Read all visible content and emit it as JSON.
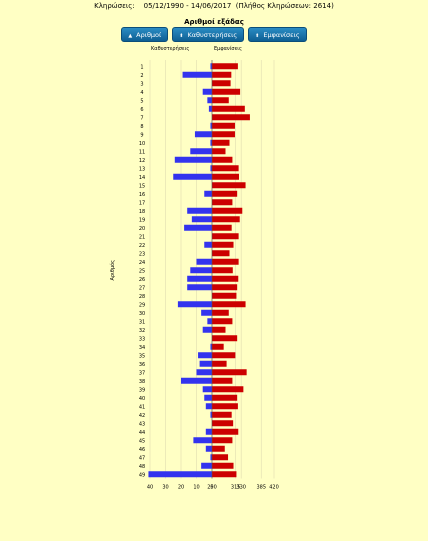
{
  "header": {
    "label": "Κληρώσεις:",
    "range": "05/12/1990 - 14/06/2017",
    "count_text": "(Πλήθος Κληρώσεων: 2614)"
  },
  "subtitle": "Αριθμοί εξάδας",
  "buttons": [
    {
      "label": "Αριθμοί",
      "icon": "up-arrow-icon"
    },
    {
      "label": "Καθυστερήσεις",
      "icon": "sort-arrows-icon"
    },
    {
      "label": "Εμφανίσεις",
      "icon": "sort-arrows-icon"
    }
  ],
  "colors": {
    "background": "#ffffc4",
    "delay_bar": "#3333ee",
    "appear_bar": "#cc0000",
    "button": "#1a78b3"
  },
  "chart_data": {
    "type": "bar",
    "orientation": "horizontal-diverging",
    "title": "Αριθμοί εξάδας",
    "ylabel": "Αριθμός",
    "left_label": "Καθυστερήσεις",
    "right_label": "Εμφανίσεις",
    "categories": [
      "1",
      "2",
      "3",
      "4",
      "5",
      "6",
      "7",
      "8",
      "9",
      "10",
      "11",
      "12",
      "13",
      "14",
      "15",
      "16",
      "17",
      "18",
      "19",
      "20",
      "21",
      "22",
      "23",
      "24",
      "25",
      "26",
      "27",
      "28",
      "29",
      "30",
      "31",
      "32",
      "33",
      "34",
      "35",
      "36",
      "37",
      "38",
      "39",
      "40",
      "41",
      "42",
      "43",
      "44",
      "45",
      "46",
      "47",
      "48",
      "49"
    ],
    "left_axis": {
      "ticks": [
        40,
        30,
        20,
        10,
        0
      ],
      "tick_labels": [
        "40",
        "30",
        "20",
        "10",
        "0"
      ],
      "range": [
        0,
        40
      ]
    },
    "right_axis": {
      "ticks": [
        250,
        315,
        330,
        385,
        420
      ],
      "tick_labels": [
        "250",
        "315",
        "330",
        "385",
        "420"
      ],
      "range": [
        250,
        420
      ]
    },
    "grid": true,
    "series": [
      {
        "name": "Καθυστερήσεις",
        "values": [
          1,
          19,
          0,
          6,
          3,
          2,
          0,
          1,
          11,
          1,
          14,
          24,
          1,
          25,
          0,
          5,
          0,
          16,
          13,
          18,
          0,
          5,
          0,
          10,
          14,
          16,
          16,
          0,
          22,
          7,
          3,
          6,
          0,
          1,
          9,
          8,
          10,
          20,
          6,
          5,
          4,
          1,
          0,
          4,
          12,
          4,
          1,
          7,
          41
        ]
      },
      {
        "name": "Εμφανίσεις",
        "values": [
          321,
          303,
          301,
          327,
          296,
          340,
          354,
          313,
          313,
          298,
          287,
          306,
          323,
          324,
          342,
          319,
          306,
          333,
          326,
          304,
          323,
          309,
          298,
          323,
          307,
          322,
          319,
          317,
          342,
          296,
          306,
          287,
          319,
          282,
          314,
          290,
          345,
          306,
          336,
          319,
          321,
          304,
          308,
          322,
          306,
          285,
          294,
          309,
          317
        ]
      }
    ]
  }
}
